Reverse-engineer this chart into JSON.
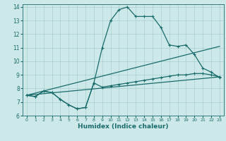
{
  "title": "",
  "xlabel": "Humidex (Indice chaleur)",
  "bg_color": "#cce8e8",
  "grid_color": "#aacfcf",
  "line_color": "#1a6b6b",
  "xlim": [
    -0.5,
    23.5
  ],
  "ylim": [
    6,
    14.2
  ],
  "yticks": [
    6,
    7,
    8,
    9,
    10,
    11,
    12,
    13,
    14
  ],
  "xticks": [
    0,
    1,
    2,
    3,
    4,
    5,
    6,
    7,
    8,
    9,
    10,
    11,
    12,
    13,
    14,
    15,
    16,
    17,
    18,
    19,
    20,
    21,
    22,
    23
  ],
  "series_main_x": [
    0,
    1,
    2,
    3,
    4,
    5,
    6,
    7,
    8,
    9,
    10,
    11,
    12,
    13,
    14,
    15,
    16,
    17,
    18,
    19,
    20,
    21,
    22,
    23
  ],
  "series_main_y": [
    7.5,
    7.4,
    7.8,
    7.7,
    7.2,
    6.8,
    6.5,
    6.6,
    8.4,
    11.0,
    13.0,
    13.8,
    14.0,
    13.3,
    13.3,
    13.3,
    12.5,
    11.2,
    11.1,
    11.2,
    10.5,
    9.5,
    9.2,
    8.8
  ],
  "series_lower_x": [
    0,
    1,
    2,
    3,
    4,
    5,
    6,
    7,
    8,
    9,
    10,
    11,
    12,
    13,
    14,
    15,
    16,
    17,
    18,
    19,
    20,
    21,
    22,
    23
  ],
  "series_lower_y": [
    7.5,
    7.4,
    7.8,
    7.7,
    7.2,
    6.8,
    6.5,
    6.6,
    8.4,
    8.1,
    8.2,
    8.3,
    8.4,
    8.5,
    8.6,
    8.7,
    8.8,
    8.9,
    9.0,
    9.0,
    9.1,
    9.1,
    9.0,
    8.85
  ],
  "series_line1_x": [
    0,
    23
  ],
  "series_line1_y": [
    7.5,
    11.1
  ],
  "series_line2_x": [
    0,
    23
  ],
  "series_line2_y": [
    7.5,
    8.85
  ]
}
